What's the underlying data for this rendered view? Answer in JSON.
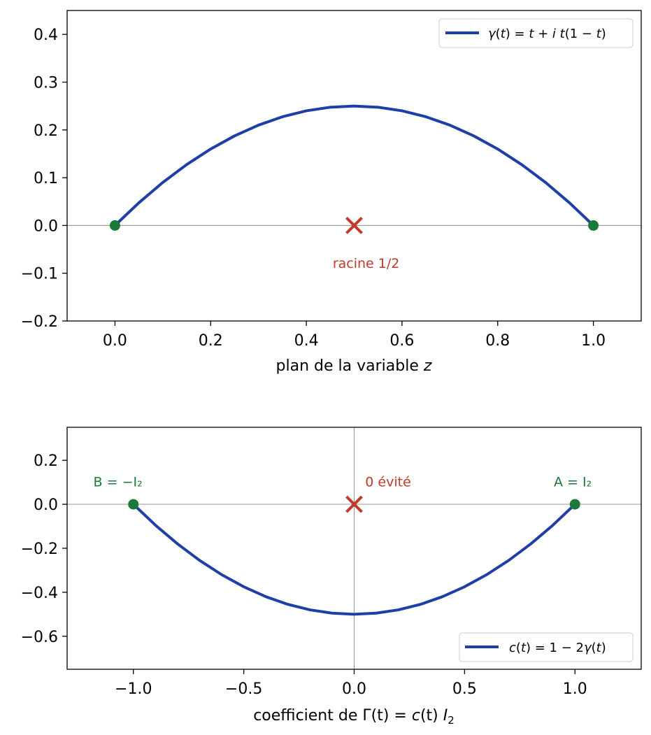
{
  "chart_data": [
    {
      "type": "line",
      "panel": "top",
      "xlabel": "plan de la variable z",
      "xlabel_parts": {
        "prefix": "plan de la variable ",
        "var": "z"
      },
      "xlim": [
        -0.1,
        1.1
      ],
      "ylim": [
        -0.2,
        0.45
      ],
      "xticks": [
        0.0,
        0.2,
        0.4,
        0.6,
        0.8,
        1.0
      ],
      "xtick_labels": [
        "0.0",
        "0.2",
        "0.4",
        "0.6",
        "0.8",
        "1.0"
      ],
      "yticks": [
        -0.2,
        -0.1,
        0.0,
        0.1,
        0.2,
        0.3,
        0.4
      ],
      "ytick_labels": [
        "−0.2",
        "−0.1",
        "0.0",
        "0.1",
        "0.2",
        "0.3",
        "0.4"
      ],
      "grid": false,
      "reference_lines": {
        "horizontal": [
          0.0
        ],
        "vertical": []
      },
      "legend": {
        "placement": "upper-right",
        "entries": [
          "γ(t) = t + i t(1 − t)"
        ]
      },
      "series": [
        {
          "name": "γ(t) = t + i t(1 − t)",
          "color": "#1f3fa8",
          "x": [
            0.0,
            0.05,
            0.1,
            0.15,
            0.2,
            0.25,
            0.3,
            0.35,
            0.4,
            0.45,
            0.5,
            0.55,
            0.6,
            0.65,
            0.7,
            0.75,
            0.8,
            0.85,
            0.9,
            0.95,
            1.0
          ],
          "y": [
            0.0,
            0.0475,
            0.09,
            0.1275,
            0.16,
            0.1875,
            0.21,
            0.2275,
            0.24,
            0.2475,
            0.25,
            0.2475,
            0.24,
            0.2275,
            0.21,
            0.1875,
            0.16,
            0.1275,
            0.09,
            0.0475,
            0.0
          ]
        }
      ],
      "points": [
        {
          "x": 0.0,
          "y": 0.0,
          "color": "#1a7a3a"
        },
        {
          "x": 1.0,
          "y": 0.0,
          "color": "#1a7a3a"
        }
      ],
      "markers": [
        {
          "x": 0.5,
          "y": 0.0,
          "symbol": "x",
          "color": "#c0392b"
        }
      ],
      "annotations": [
        {
          "text": "racine 1/2",
          "x": 0.525,
          "y": -0.08,
          "color": "#c0392b"
        }
      ]
    },
    {
      "type": "line",
      "panel": "bottom",
      "xlabel": "coefficient de Γ(t) = c(t) I₂",
      "xlabel_parts": {
        "prefix": "coefficient de Γ",
        "rest": "(t) = ",
        "c": "c",
        "ct": "(t) ",
        "I": "I",
        "sub": "2"
      },
      "xlim": [
        -1.3,
        1.3
      ],
      "ylim": [
        -0.75,
        0.35
      ],
      "xticks": [
        -1.0,
        -0.5,
        0.0,
        0.5,
        1.0
      ],
      "xtick_labels": [
        "−1.0",
        "−0.5",
        "0.0",
        "0.5",
        "1.0"
      ],
      "yticks": [
        -0.6,
        -0.4,
        -0.2,
        0.0,
        0.2
      ],
      "ytick_labels": [
        "−0.6",
        "−0.4",
        "−0.2",
        "0.0",
        "0.2"
      ],
      "grid": false,
      "reference_lines": {
        "horizontal": [
          0.0
        ],
        "vertical": [
          0.0
        ]
      },
      "legend": {
        "placement": "lower-right",
        "entries": [
          "c(t) = 1 − 2γ(t)"
        ]
      },
      "series": [
        {
          "name": "c(t) = 1 − 2γ(t)",
          "color": "#1f3fa8",
          "x": [
            1.0,
            0.9,
            0.8,
            0.7,
            0.6,
            0.5,
            0.4,
            0.3,
            0.2,
            0.1,
            0.0,
            -0.1,
            -0.2,
            -0.3,
            -0.4,
            -0.5,
            -0.6,
            -0.7,
            -0.8,
            -0.9,
            -1.0
          ],
          "y": [
            0.0,
            -0.095,
            -0.18,
            -0.255,
            -0.32,
            -0.375,
            -0.42,
            -0.455,
            -0.48,
            -0.495,
            -0.5,
            -0.495,
            -0.48,
            -0.455,
            -0.42,
            -0.375,
            -0.32,
            -0.255,
            -0.18,
            -0.095,
            0.0
          ]
        }
      ],
      "points": [
        {
          "x": -1.0,
          "y": 0.0,
          "color": "#1a7a3a"
        },
        {
          "x": 1.0,
          "y": 0.0,
          "color": "#1a7a3a"
        }
      ],
      "markers": [
        {
          "x": 0.0,
          "y": 0.0,
          "symbol": "x",
          "color": "#c0392b"
        }
      ],
      "annotations": [
        {
          "text": "B = −I₂",
          "x": -1.07,
          "y": 0.1,
          "color": "#1a7a3a"
        },
        {
          "text": "A = I₂",
          "x": 0.99,
          "y": 0.1,
          "color": "#1a7a3a"
        },
        {
          "text": "0 évité",
          "x": 0.05,
          "y": 0.1,
          "color": "#c0392b"
        }
      ]
    }
  ]
}
